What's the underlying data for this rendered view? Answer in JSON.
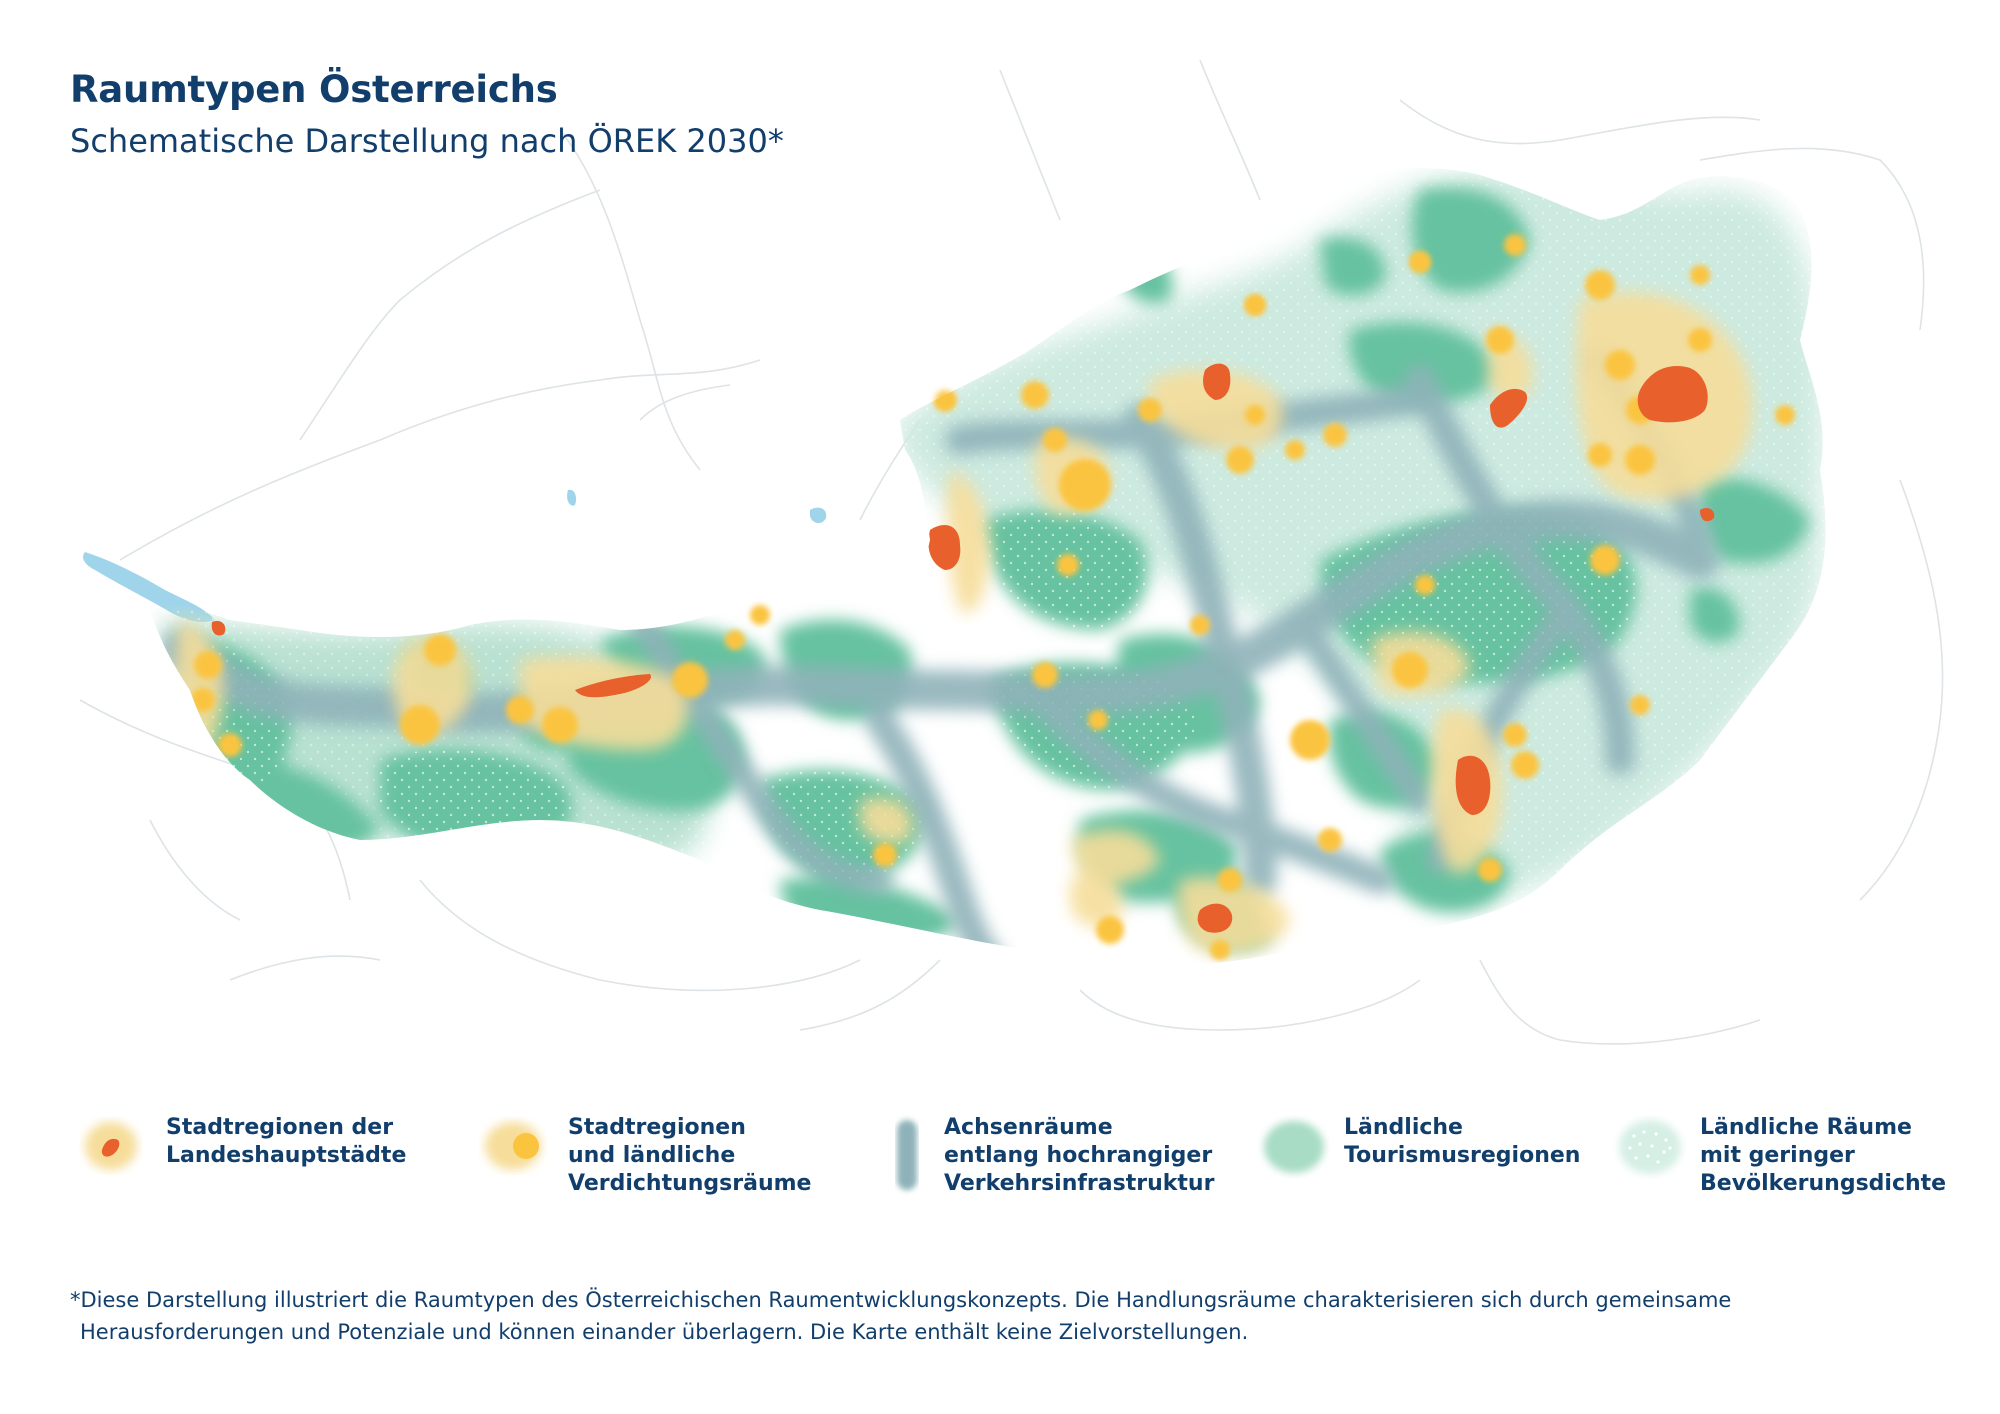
{
  "header": {
    "title": "Raumtypen Österreichs",
    "subtitle": "Schematische Darstellung nach ÖREK 2030*"
  },
  "colors": {
    "capital_region": "#e8602c",
    "urban_region": "#fbc43f",
    "urban_halo": "#f6dd9a",
    "corridor": "#8fb2b9",
    "tourism": "#66c2a0",
    "low_density": "#cdeae0",
    "lake": "#9fd4ea",
    "borders": "#d7dde0",
    "text": "#123e6c"
  },
  "legend": [
    {
      "key": "capital",
      "icon": "capital-region-swatch",
      "label": "Stadtregionen der\nLandeshauptstädte"
    },
    {
      "key": "urban",
      "icon": "urban-region-swatch",
      "label": "Stadtregionen\nund ländliche\nVerdichtungsräume"
    },
    {
      "key": "corridor",
      "icon": "corridor-swatch",
      "label": "Achsenräume\nentlang hochrangiger\nVerkehrsinfrastruktur"
    },
    {
      "key": "tourism",
      "icon": "tourism-swatch",
      "label": "Ländliche\nTourismusregionen"
    },
    {
      "key": "lowdensity",
      "icon": "low-density-swatch",
      "label": "Ländliche Räume\nmit geringer\nBevölkerungsdichte"
    }
  ],
  "footnote": {
    "line1": "*Diese Darstellung illustriert die Raumtypen des Österreichischen Raumentwicklungskonzepts. Die Handlungsräume charakterisieren sich durch gemeinsame",
    "line2": "Herausforderungen und Potenziale und können einander überlagern. Die Karte enthält keine Zielvorstellungen."
  }
}
